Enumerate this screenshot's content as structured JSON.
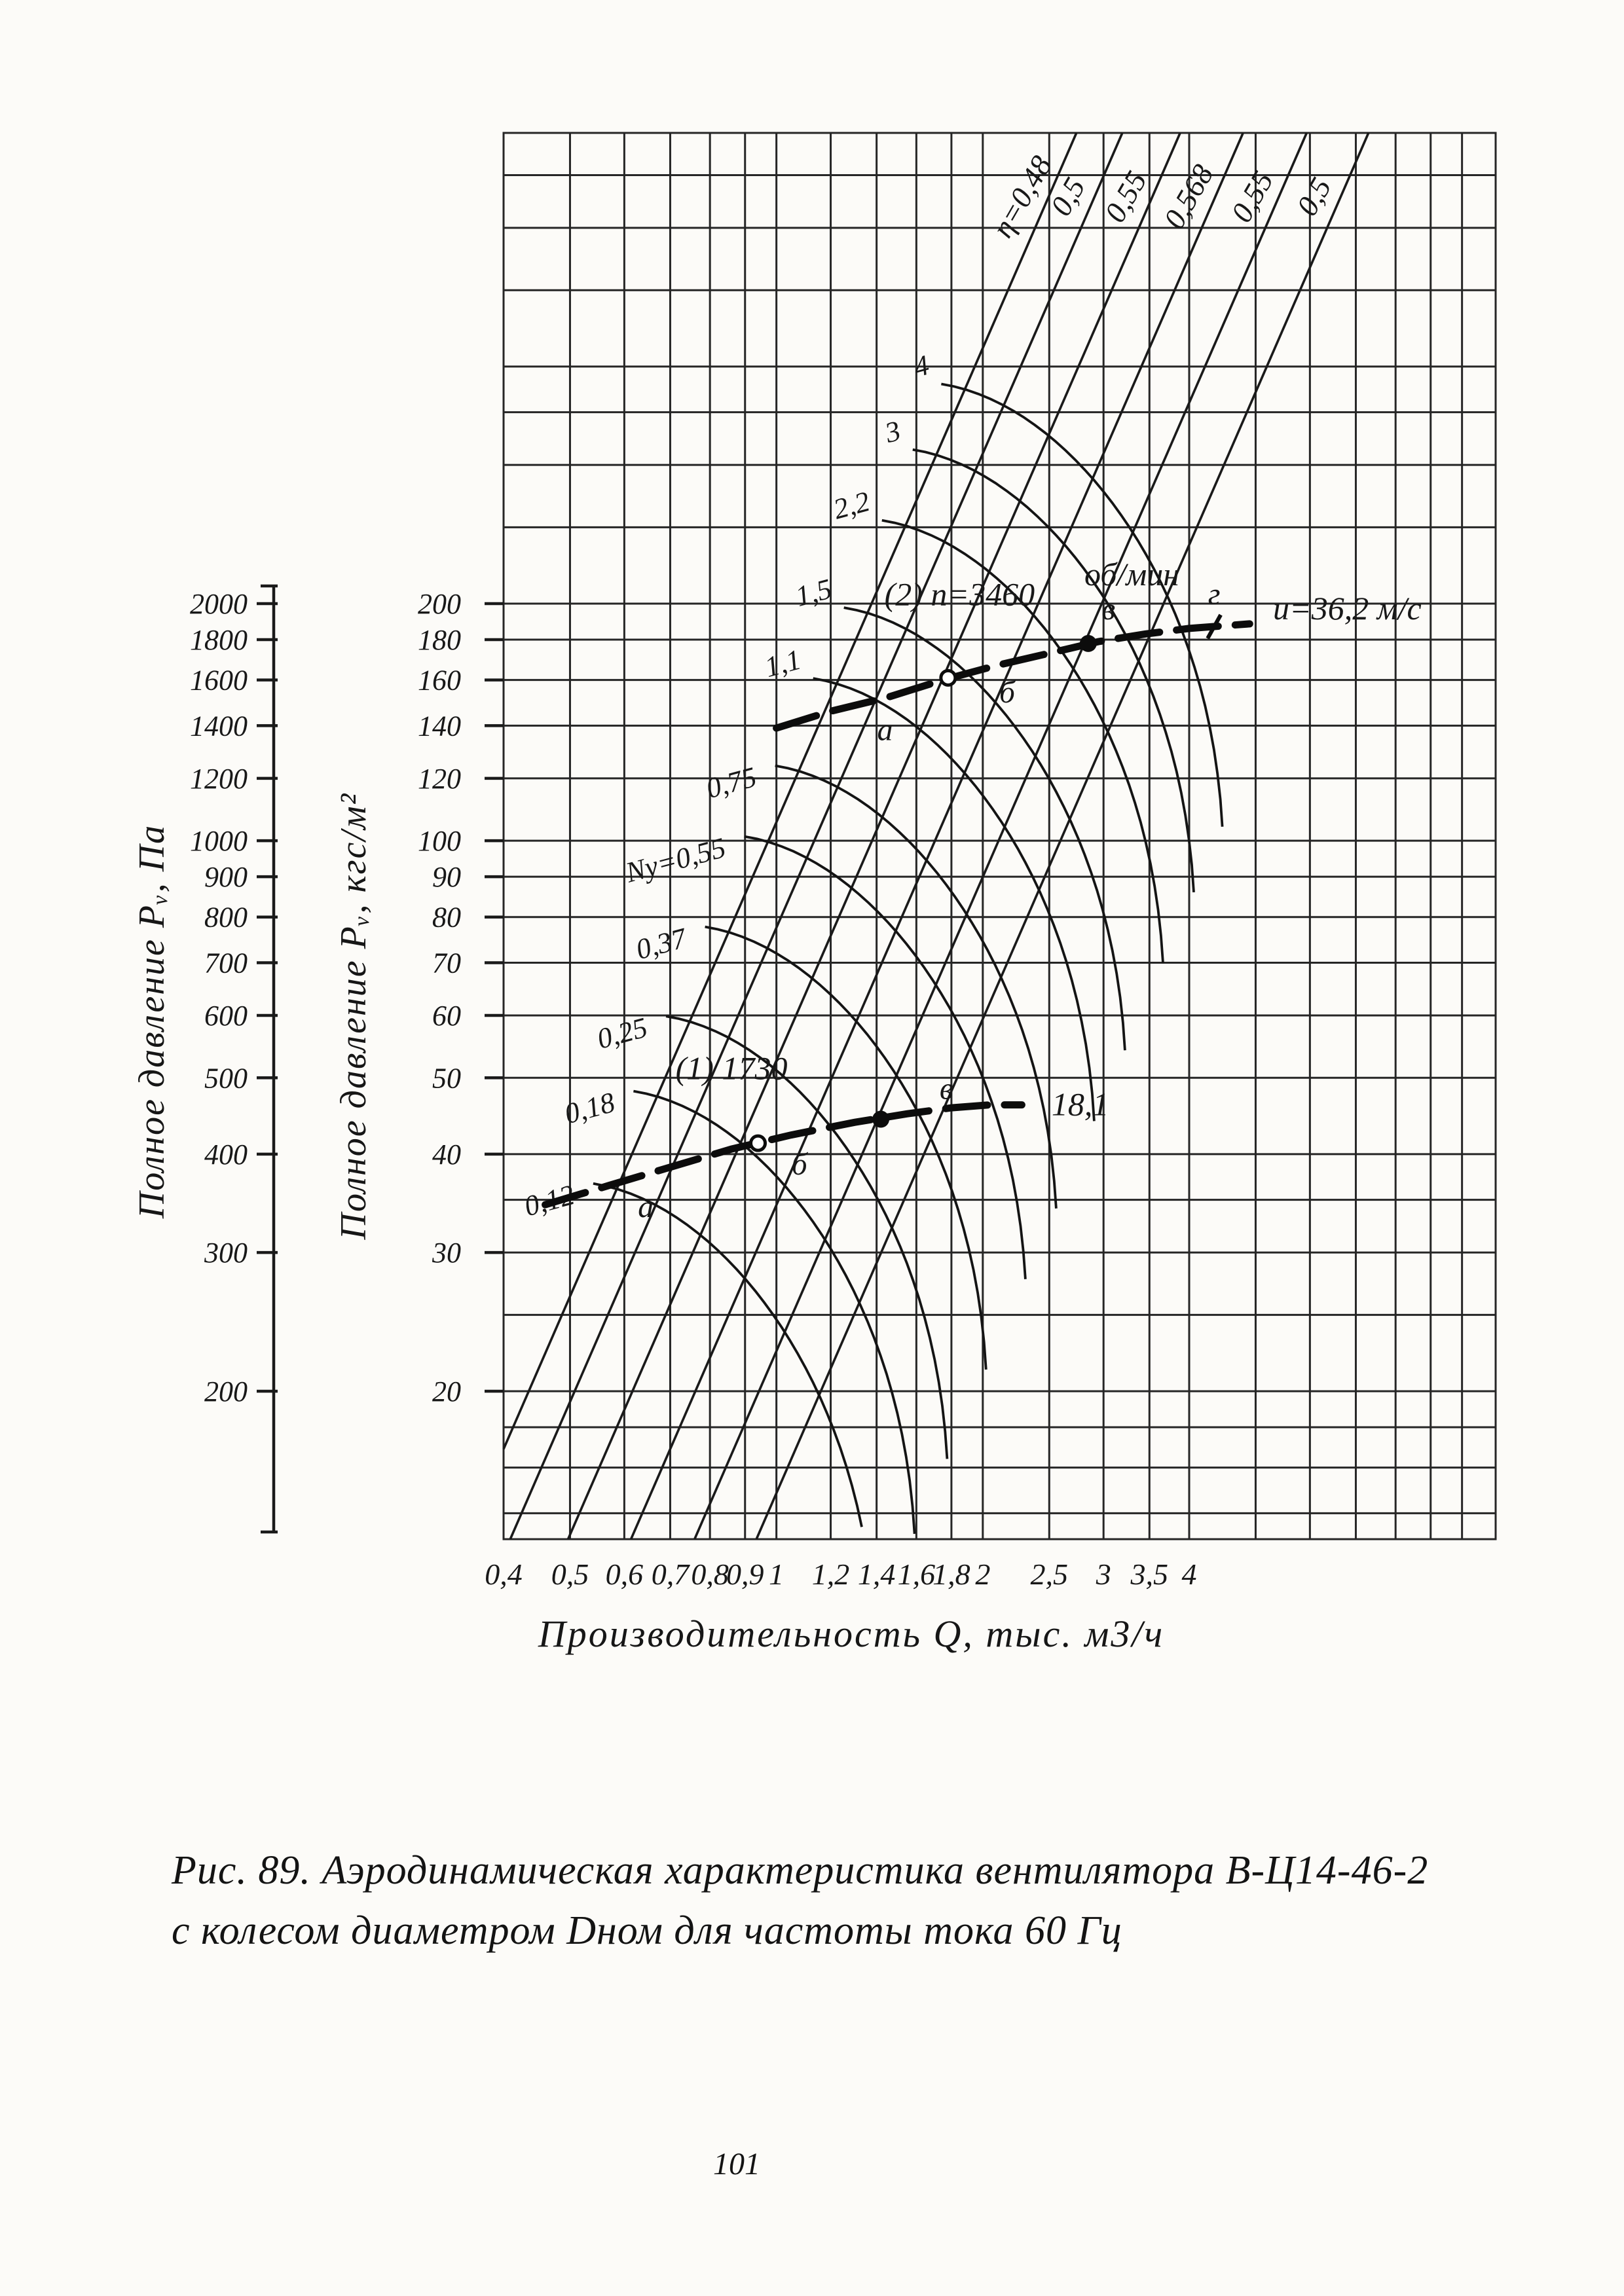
{
  "page": {
    "number": "101",
    "caption": {
      "line1": "Рис. 89. Аэродинамическая характеристика вентилятора В-Ц14-46-2",
      "line2": "с колесом диаметром Dном для частоты тока 60 Гц"
    }
  },
  "chart_data": {
    "type": "line",
    "title": "Аэродинамическая характеристика вентилятора В-Ц14-46-2",
    "xlabel": "Производительность  Q, тыс. м3/ч",
    "ylabel_pa": "Полное давление  Pᵥ, Па",
    "ylabel_kgf": "Полное давление  Pᵥ, кгс/м²",
    "x_log": true,
    "y_log": true,
    "x_range_grid": [
      0.4,
      11.2
    ],
    "y_range_grid_kgf": [
      13,
      790
    ],
    "x_ticks": [
      0.4,
      0.5,
      0.6,
      0.7,
      0.8,
      0.9,
      1,
      1.2,
      1.4,
      1.6,
      1.8,
      2,
      2.5,
      3,
      3.5,
      4
    ],
    "x_tick_labels": [
      "0,4",
      "0,5",
      "0,6",
      "0,7",
      "0,8",
      "0,9",
      "1",
      "1,2",
      "1,4",
      "1,6",
      "1,8",
      "2",
      "2,5",
      "3",
      "3,5",
      "4"
    ],
    "x_grid_extra": [
      5,
      6,
      7,
      8,
      9,
      10
    ],
    "y_ticks_kgf": [
      20,
      30,
      40,
      50,
      60,
      70,
      80,
      90,
      100,
      120,
      140,
      160,
      180,
      200
    ],
    "y_tick_labels_kgf": [
      "20",
      "30",
      "40",
      "50",
      "60",
      "70",
      "80",
      "90",
      "100",
      "120",
      "140",
      "160",
      "180",
      "200"
    ],
    "y_tick_labels_pa": [
      "200",
      "300",
      "400",
      "500",
      "600",
      "700",
      "800",
      "900",
      "1000",
      "1200",
      "1400",
      "1600",
      "1800",
      "2000"
    ],
    "y_grid_values": [
      14,
      16,
      18,
      20,
      25,
      30,
      35,
      40,
      50,
      60,
      70,
      80,
      90,
      100,
      120,
      140,
      160,
      180,
      200,
      250,
      300,
      350,
      400,
      500,
      600,
      700,
      800
    ],
    "efficiency_ref_pressure": 38,
    "efficiency_lines": [
      {
        "label": "η=0,48",
        "q_ref": 0.6
      },
      {
        "label": "0,5",
        "q_ref": 0.7
      },
      {
        "label": "0,55",
        "q_ref": 0.85
      },
      {
        "label": "0,568",
        "q_ref": 1.05
      },
      {
        "label": "0,55",
        "q_ref": 1.3
      },
      {
        "label": "0,5",
        "q_ref": 1.6
      }
    ],
    "power_curves": [
      {
        "label": "4",
        "n_kw": 4
      },
      {
        "label": "3",
        "n_kw": 3
      },
      {
        "label": "2,2",
        "n_kw": 2.2
      },
      {
        "label": "1,5",
        "n_kw": 1.5
      },
      {
        "label": "1,1",
        "n_kw": 1.1
      },
      {
        "label": "0,75",
        "n_kw": 0.75
      },
      {
        "label": "Nу=0,55",
        "n_kw": 0.55
      },
      {
        "label": "0,37",
        "n_kw": 0.37
      },
      {
        "label": "0,25",
        "n_kw": 0.25
      },
      {
        "label": "0,18",
        "n_kw": 0.18
      },
      {
        "label": "0,12",
        "n_kw": 0.12
      }
    ],
    "fan_curves": [
      {
        "name": "curve-1730",
        "rpm": 1730,
        "points": [
          [
            0.46,
            34.5
          ],
          [
            0.57,
            36.5
          ],
          [
            0.7,
            38.5
          ],
          [
            0.86,
            40.6
          ],
          [
            1.05,
            42.3
          ],
          [
            1.3,
            43.9
          ],
          [
            1.55,
            45.0
          ],
          [
            1.8,
            45.8
          ],
          [
            2.05,
            46.2
          ],
          [
            2.28,
            46.2
          ]
        ],
        "markers": [
          {
            "label": "а",
            "q": 0.645,
            "p": 36.2,
            "marker": "none",
            "side": "below"
          },
          {
            "label": "",
            "q": 0.94,
            "p": 41.3,
            "marker": "open"
          },
          {
            "label": "б",
            "q": 1.08,
            "p": 41.0,
            "marker": "none",
            "side": "below"
          },
          {
            "label": "",
            "q": 1.42,
            "p": 44.3,
            "marker": "filled"
          },
          {
            "label": "в",
            "q": 1.77,
            "p": 47.0,
            "marker": "none",
            "side": "above"
          }
        ],
        "annotations": [
          {
            "text": "(1) 1730",
            "q": 0.86,
            "p": 49.8,
            "anchor": "middle"
          },
          {
            "text": "18,1",
            "q": 2.52,
            "p": 44.8,
            "anchor": "start"
          }
        ]
      },
      {
        "name": "curve-3460",
        "rpm": 3460,
        "points": [
          [
            1.0,
            139
          ],
          [
            1.2,
            146
          ],
          [
            1.45,
            152
          ],
          [
            1.75,
            160
          ],
          [
            2.1,
            167
          ],
          [
            2.5,
            173
          ],
          [
            2.95,
            179
          ],
          [
            3.45,
            183
          ],
          [
            4.0,
            186
          ],
          [
            4.9,
            188.5
          ]
        ],
        "markers": [
          {
            "label": "а",
            "q": 1.44,
            "p": 146,
            "marker": "none",
            "side": "below"
          },
          {
            "label": "",
            "q": 1.78,
            "p": 161,
            "marker": "open"
          },
          {
            "label": "б",
            "q": 2.17,
            "p": 163,
            "marker": "none",
            "side": "below"
          },
          {
            "label": "",
            "q": 2.85,
            "p": 178,
            "marker": "filled"
          },
          {
            "label": "в",
            "q": 3.05,
            "p": 191,
            "marker": "none",
            "side": "above"
          },
          {
            "label": "г",
            "q": 4.35,
            "p": 187,
            "marker": "tick",
            "side": "above"
          }
        ],
        "annotations": [
          {
            "text": "(2) n=3460",
            "q": 1.85,
            "p": 199,
            "anchor": "middle"
          },
          {
            "text": "об/мин",
            "q": 3.3,
            "p": 211,
            "anchor": "middle"
          },
          {
            "text": "u=36,2 м/с",
            "q": 5.3,
            "p": 191,
            "anchor": "start"
          }
        ]
      }
    ]
  }
}
